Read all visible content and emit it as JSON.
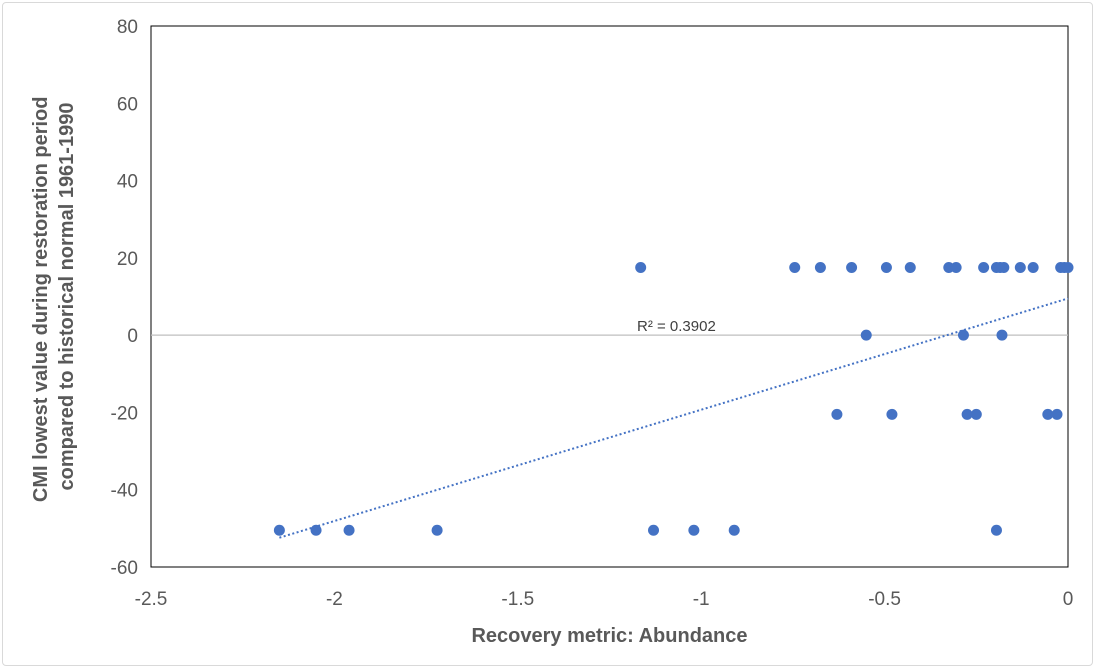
{
  "chart_data": {
    "type": "scatter",
    "xlabel": "Recovery metric: Abundance",
    "ylabel_lines": [
      "CMI lowest value during restoration period",
      "compared to historical normal 1961-1990"
    ],
    "xlim": [
      -2.5,
      0
    ],
    "ylim": [
      -60,
      80
    ],
    "x_ticks": [
      -2.5,
      -2,
      -1.5,
      -1,
      -0.5,
      0
    ],
    "x_tick_labels": [
      "-2.5",
      "-2",
      "-1.5",
      "-1",
      "-0.5",
      "0"
    ],
    "y_ticks": [
      -60,
      -40,
      -20,
      0,
      20,
      40,
      60,
      80
    ],
    "y_tick_labels": [
      "-60",
      "-40",
      "-20",
      "0",
      "20",
      "40",
      "60",
      "80"
    ],
    "grid": false,
    "zero_line": true,
    "series": [
      {
        "color": "#4472C4",
        "points": [
          [
            -2.15,
            -50.5
          ],
          [
            -2.05,
            -50.5
          ],
          [
            -1.96,
            -50.5
          ],
          [
            -1.72,
            -50.5
          ],
          [
            -1.13,
            -50.5
          ],
          [
            -1.02,
            -50.5
          ],
          [
            -0.91,
            -50.5
          ],
          [
            -0.195,
            -50.5
          ],
          [
            -0.63,
            -20.5
          ],
          [
            -0.48,
            -20.5
          ],
          [
            -0.275,
            -20.5
          ],
          [
            -0.25,
            -20.5
          ],
          [
            -0.055,
            -20.5
          ],
          [
            -0.03,
            -20.5
          ],
          [
            -0.55,
            0
          ],
          [
            -0.285,
            0
          ],
          [
            -0.18,
            0
          ],
          [
            -1.165,
            17.5
          ],
          [
            -0.745,
            17.5
          ],
          [
            -0.675,
            17.5
          ],
          [
            -0.59,
            17.5
          ],
          [
            -0.495,
            17.5
          ],
          [
            -0.43,
            17.5
          ],
          [
            -0.325,
            17.5
          ],
          [
            -0.305,
            17.5
          ],
          [
            -0.23,
            17.5
          ],
          [
            -0.195,
            17.5
          ],
          [
            -0.185,
            17.5
          ],
          [
            -0.175,
            17.5
          ],
          [
            -0.13,
            17.5
          ],
          [
            -0.095,
            17.5
          ],
          [
            -0.02,
            17.5
          ],
          [
            -0.01,
            17.5
          ],
          [
            0.0,
            17.5
          ]
        ]
      }
    ],
    "trendline": {
      "type": "linear",
      "style": "dotted",
      "color": "#4472C4",
      "x_range": [
        -2.15,
        0
      ],
      "slope": 28.8,
      "intercept": 9.5,
      "r2_label": "R² = 0.3902"
    }
  }
}
